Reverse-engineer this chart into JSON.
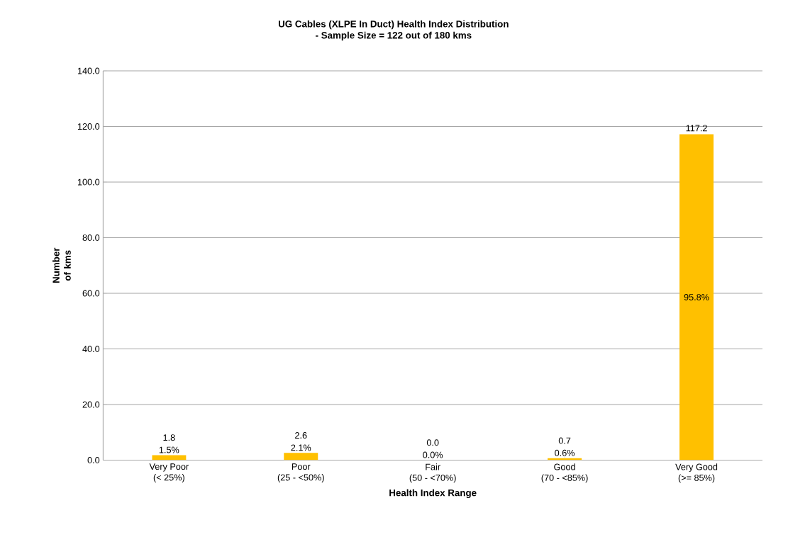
{
  "chart_data": {
    "type": "bar",
    "title": "UG Cables (XLPE In Duct) Health Index Distribution",
    "subtitle": "- Sample Size = 122 out of 180 kms",
    "xlabel": "Health Index Range",
    "ylabel": "Number of kms",
    "categories": [
      "Very Poor\n(< 25%)",
      "Poor\n(25 - <50%)",
      "Fair\n(50 - <70%)",
      "Good\n(70 - <85%)",
      "Very Good\n(>= 85%)"
    ],
    "values": [
      1.8,
      2.6,
      0.0,
      0.7,
      117.2
    ],
    "color": "#ffc000",
    "value_labels": [
      "1.8",
      "2.6",
      "0.0",
      "0.7",
      "117.2"
    ],
    "annotations": [
      "1.5%",
      "2.1%",
      "0.0%",
      "0.6%",
      "95.8%"
    ],
    "ylim": [
      0,
      140
    ],
    "yticks": [
      {
        "value": 0,
        "label": "0.0"
      },
      {
        "value": 20,
        "label": "20.0"
      },
      {
        "value": 40,
        "label": "40.0"
      },
      {
        "value": 60,
        "label": "60.0"
      },
      {
        "value": 80,
        "label": "80.0"
      },
      {
        "value": 100,
        "label": "100.0"
      },
      {
        "value": 120,
        "label": "120.0"
      },
      {
        "value": 140,
        "label": "140.0"
      }
    ],
    "grid": "y"
  }
}
